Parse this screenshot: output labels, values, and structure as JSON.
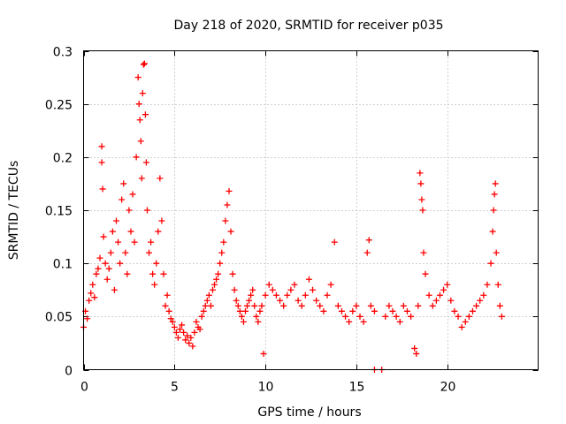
{
  "chart_data": {
    "type": "scatter",
    "title": "Day 218 of 2020, SRMTID for receiver p035",
    "xlabel": "GPS time / hours",
    "ylabel": "SRMTID / TECUs",
    "xlim": [
      0,
      25
    ],
    "ylim": [
      0,
      0.3
    ],
    "xticks": [
      0,
      5,
      10,
      15,
      20
    ],
    "yticks": [
      0,
      0.05,
      0.1,
      0.15,
      0.2,
      0.25,
      0.3
    ],
    "xtick_labels": [
      "0",
      "5",
      "10",
      "15",
      "20"
    ],
    "ytick_labels": [
      "0",
      "0.05",
      "0.1",
      "0.15",
      "0.2",
      "0.25",
      "0.3"
    ],
    "grid": true,
    "marker": "+",
    "color": "#ff0000",
    "series": [
      {
        "name": "SRMTID",
        "points": [
          [
            0.0,
            0.04
          ],
          [
            0.1,
            0.055
          ],
          [
            0.2,
            0.048
          ],
          [
            0.3,
            0.065
          ],
          [
            0.4,
            0.072
          ],
          [
            0.5,
            0.08
          ],
          [
            0.6,
            0.068
          ],
          [
            0.7,
            0.09
          ],
          [
            0.8,
            0.095
          ],
          [
            0.9,
            0.105
          ],
          [
            1.0,
            0.21
          ],
          [
            1.0,
            0.195
          ],
          [
            1.05,
            0.17
          ],
          [
            1.1,
            0.125
          ],
          [
            1.2,
            0.1
          ],
          [
            1.3,
            0.085
          ],
          [
            1.4,
            0.095
          ],
          [
            1.5,
            0.11
          ],
          [
            1.6,
            0.13
          ],
          [
            1.7,
            0.075
          ],
          [
            1.8,
            0.14
          ],
          [
            1.9,
            0.12
          ],
          [
            2.0,
            0.1
          ],
          [
            2.1,
            0.16
          ],
          [
            2.2,
            0.175
          ],
          [
            2.3,
            0.11
          ],
          [
            2.4,
            0.09
          ],
          [
            2.5,
            0.15
          ],
          [
            2.6,
            0.13
          ],
          [
            2.7,
            0.165
          ],
          [
            2.8,
            0.12
          ],
          [
            2.9,
            0.2
          ],
          [
            3.0,
            0.275
          ],
          [
            3.05,
            0.25
          ],
          [
            3.1,
            0.235
          ],
          [
            3.15,
            0.215
          ],
          [
            3.2,
            0.18
          ],
          [
            3.25,
            0.26
          ],
          [
            3.3,
            0.287
          ],
          [
            3.35,
            0.288
          ],
          [
            3.4,
            0.24
          ],
          [
            3.45,
            0.195
          ],
          [
            3.5,
            0.15
          ],
          [
            3.6,
            0.11
          ],
          [
            3.7,
            0.12
          ],
          [
            3.8,
            0.09
          ],
          [
            3.9,
            0.08
          ],
          [
            4.0,
            0.1
          ],
          [
            4.1,
            0.13
          ],
          [
            4.2,
            0.18
          ],
          [
            4.3,
            0.14
          ],
          [
            4.4,
            0.09
          ],
          [
            4.5,
            0.06
          ],
          [
            4.6,
            0.07
          ],
          [
            4.7,
            0.055
          ],
          [
            4.8,
            0.048
          ],
          [
            4.9,
            0.045
          ],
          [
            5.0,
            0.04
          ],
          [
            5.1,
            0.035
          ],
          [
            5.2,
            0.03
          ],
          [
            5.3,
            0.038
          ],
          [
            5.4,
            0.042
          ],
          [
            5.5,
            0.035
          ],
          [
            5.6,
            0.028
          ],
          [
            5.7,
            0.032
          ],
          [
            5.8,
            0.025
          ],
          [
            5.9,
            0.03
          ],
          [
            6.0,
            0.022
          ],
          [
            6.1,
            0.035
          ],
          [
            6.2,
            0.045
          ],
          [
            6.3,
            0.04
          ],
          [
            6.4,
            0.038
          ],
          [
            6.5,
            0.05
          ],
          [
            6.6,
            0.055
          ],
          [
            6.7,
            0.06
          ],
          [
            6.8,
            0.065
          ],
          [
            6.9,
            0.07
          ],
          [
            7.0,
            0.06
          ],
          [
            7.1,
            0.075
          ],
          [
            7.2,
            0.08
          ],
          [
            7.3,
            0.085
          ],
          [
            7.4,
            0.09
          ],
          [
            7.5,
            0.1
          ],
          [
            7.6,
            0.11
          ],
          [
            7.7,
            0.12
          ],
          [
            7.8,
            0.14
          ],
          [
            7.9,
            0.155
          ],
          [
            8.0,
            0.168
          ],
          [
            8.1,
            0.13
          ],
          [
            8.2,
            0.09
          ],
          [
            8.3,
            0.075
          ],
          [
            8.4,
            0.065
          ],
          [
            8.5,
            0.06
          ],
          [
            8.6,
            0.055
          ],
          [
            8.7,
            0.05
          ],
          [
            8.8,
            0.045
          ],
          [
            8.9,
            0.055
          ],
          [
            9.0,
            0.06
          ],
          [
            9.1,
            0.065
          ],
          [
            9.2,
            0.07
          ],
          [
            9.3,
            0.075
          ],
          [
            9.4,
            0.06
          ],
          [
            9.5,
            0.05
          ],
          [
            9.6,
            0.045
          ],
          [
            9.7,
            0.055
          ],
          [
            9.8,
            0.06
          ],
          [
            9.9,
            0.015
          ],
          [
            10.0,
            0.07
          ],
          [
            10.2,
            0.08
          ],
          [
            10.4,
            0.075
          ],
          [
            10.6,
            0.07
          ],
          [
            10.8,
            0.065
          ],
          [
            11.0,
            0.06
          ],
          [
            11.2,
            0.07
          ],
          [
            11.4,
            0.075
          ],
          [
            11.6,
            0.08
          ],
          [
            11.8,
            0.065
          ],
          [
            12.0,
            0.06
          ],
          [
            12.2,
            0.07
          ],
          [
            12.4,
            0.085
          ],
          [
            12.6,
            0.075
          ],
          [
            12.8,
            0.065
          ],
          [
            13.0,
            0.06
          ],
          [
            13.2,
            0.055
          ],
          [
            13.4,
            0.07
          ],
          [
            13.6,
            0.08
          ],
          [
            13.8,
            0.12
          ],
          [
            14.0,
            0.06
          ],
          [
            14.2,
            0.055
          ],
          [
            14.4,
            0.05
          ],
          [
            14.6,
            0.045
          ],
          [
            14.8,
            0.055
          ],
          [
            15.0,
            0.06
          ],
          [
            15.2,
            0.05
          ],
          [
            15.4,
            0.045
          ],
          [
            15.6,
            0.11
          ],
          [
            15.7,
            0.122
          ],
          [
            15.8,
            0.06
          ],
          [
            16.0,
            0.055
          ],
          [
            16.0,
            0.0
          ],
          [
            16.4,
            0.0
          ],
          [
            16.6,
            0.05
          ],
          [
            16.8,
            0.06
          ],
          [
            17.0,
            0.055
          ],
          [
            17.2,
            0.05
          ],
          [
            17.4,
            0.045
          ],
          [
            17.6,
            0.06
          ],
          [
            17.8,
            0.055
          ],
          [
            18.0,
            0.05
          ],
          [
            18.2,
            0.02
          ],
          [
            18.3,
            0.015
          ],
          [
            18.4,
            0.06
          ],
          [
            18.5,
            0.185
          ],
          [
            18.55,
            0.175
          ],
          [
            18.6,
            0.16
          ],
          [
            18.65,
            0.15
          ],
          [
            18.7,
            0.11
          ],
          [
            18.8,
            0.09
          ],
          [
            19.0,
            0.07
          ],
          [
            19.2,
            0.06
          ],
          [
            19.4,
            0.065
          ],
          [
            19.6,
            0.07
          ],
          [
            19.8,
            0.075
          ],
          [
            20.0,
            0.08
          ],
          [
            20.2,
            0.065
          ],
          [
            20.4,
            0.055
          ],
          [
            20.6,
            0.05
          ],
          [
            20.8,
            0.04
          ],
          [
            21.0,
            0.045
          ],
          [
            21.2,
            0.05
          ],
          [
            21.4,
            0.055
          ],
          [
            21.6,
            0.06
          ],
          [
            21.8,
            0.065
          ],
          [
            22.0,
            0.07
          ],
          [
            22.2,
            0.08
          ],
          [
            22.4,
            0.1
          ],
          [
            22.5,
            0.13
          ],
          [
            22.55,
            0.15
          ],
          [
            22.6,
            0.165
          ],
          [
            22.65,
            0.175
          ],
          [
            22.7,
            0.11
          ],
          [
            22.8,
            0.08
          ],
          [
            22.9,
            0.06
          ],
          [
            23.0,
            0.05
          ]
        ]
      }
    ]
  }
}
